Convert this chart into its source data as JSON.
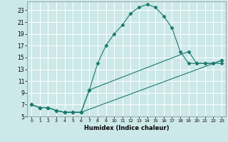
{
  "title": "",
  "xlabel": "Humidex (Indice chaleur)",
  "background_color": "#cce8e8",
  "grid_color": "#ffffff",
  "line_color": "#1a7a6e",
  "xlim": [
    -0.5,
    23.5
  ],
  "ylim": [
    5,
    24.5
  ],
  "xticks": [
    0,
    1,
    2,
    3,
    4,
    5,
    6,
    7,
    8,
    9,
    10,
    11,
    12,
    13,
    14,
    15,
    16,
    17,
    18,
    19,
    20,
    21,
    22,
    23
  ],
  "yticks": [
    5,
    7,
    9,
    11,
    13,
    15,
    17,
    19,
    21,
    23
  ],
  "line1_x": [
    0,
    1,
    2,
    3,
    4,
    5,
    6,
    7,
    8,
    9,
    10,
    11,
    12,
    13,
    14,
    15,
    16,
    17,
    18,
    19,
    20,
    21,
    22,
    23
  ],
  "line1_y": [
    7,
    6.5,
    6.5,
    6,
    5.7,
    5.7,
    5.7,
    9.5,
    14,
    17,
    19,
    20.5,
    22.5,
    23.5,
    24,
    23.5,
    22,
    20,
    16,
    14,
    14,
    14,
    14,
    14
  ],
  "line2_x": [
    0,
    1,
    2,
    3,
    4,
    5,
    6,
    7,
    19,
    20,
    21,
    22,
    23
  ],
  "line2_y": [
    7,
    6.5,
    6.5,
    6,
    5.7,
    5.7,
    5.7,
    9.5,
    16,
    14,
    14,
    14,
    14.5
  ],
  "line3_x": [
    0,
    1,
    2,
    3,
    4,
    5,
    6,
    23
  ],
  "line3_y": [
    7,
    6.5,
    6.5,
    6,
    5.7,
    5.7,
    5.7,
    14.5
  ]
}
